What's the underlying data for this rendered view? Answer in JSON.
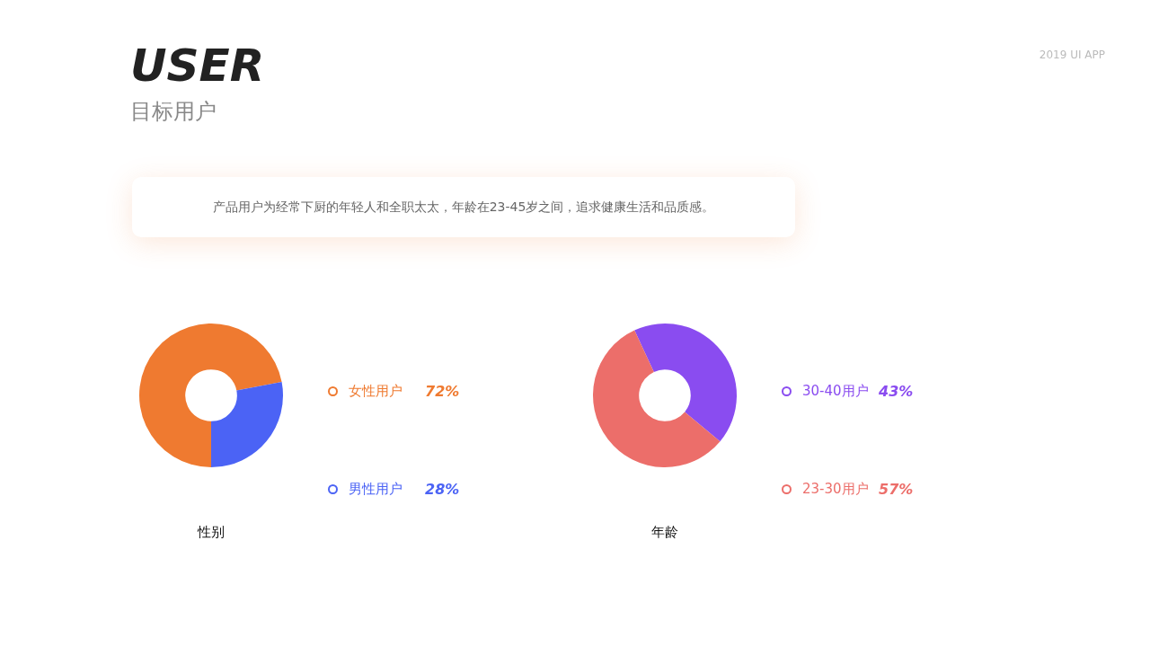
{
  "chart_data": [
    {
      "type": "other",
      "title": "USER",
      "subtitle": "目标用户",
      "annotations": [
        "产品用户为经常下厨的年轻人和全职太太，年龄在23-45岁之间，追求健康生活和品质感。",
        "2019 UI APP"
      ]
    },
    {
      "type": "donut",
      "title": "性别",
      "categories": [
        "女性用户",
        "男性用户"
      ],
      "values": [
        72,
        28
      ],
      "colors": [
        "#ef7a30",
        "#4b63f5"
      ],
      "value_labels": [
        "72%",
        "28%"
      ],
      "legend": "right"
    },
    {
      "type": "donut",
      "title": "年龄",
      "categories": [
        "30-40用户",
        "23-30用户"
      ],
      "values": [
        43,
        57
      ],
      "colors": [
        "#8a4cf0",
        "#ec6e6a"
      ],
      "value_labels": [
        "43%",
        "57%"
      ],
      "legend": "right"
    }
  ]
}
